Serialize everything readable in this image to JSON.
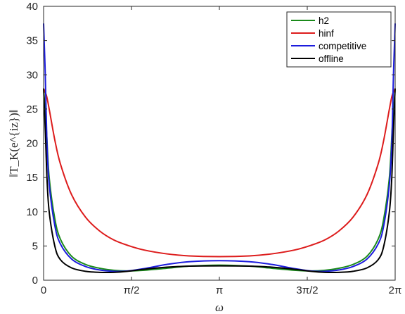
{
  "chart_data": {
    "type": "line",
    "xlabel": "ω",
    "ylabel": "‖T_K(e^{iz})‖",
    "xlim": [
      0,
      6.283185
    ],
    "ylim": [
      0,
      40
    ],
    "xticks": [
      {
        "value": 0,
        "label": "0"
      },
      {
        "value": 1.570796,
        "label": "π/2"
      },
      {
        "value": 3.141593,
        "label": "π"
      },
      {
        "value": 4.712389,
        "label": "3π/2"
      },
      {
        "value": 6.283185,
        "label": "2π"
      }
    ],
    "yticks": [
      0,
      5,
      10,
      15,
      20,
      25,
      30,
      35,
      40
    ],
    "grid": false,
    "legend_position": "top-right",
    "series": [
      {
        "name": "h2",
        "color": "#1a8a1a",
        "x": [
          0.0,
          0.05,
          0.1,
          0.2,
          0.3,
          0.5,
          0.75,
          1.0,
          1.25,
          1.5,
          1.8,
          2.2,
          2.6,
          3.1416,
          3.68,
          4.08,
          4.48,
          4.78,
          5.03,
          5.28,
          5.53,
          5.78,
          5.98,
          6.08,
          6.18,
          6.23,
          6.2832
        ],
        "y": [
          28.0,
          22.0,
          15.0,
          9.0,
          6.0,
          3.5,
          2.3,
          1.75,
          1.45,
          1.35,
          1.45,
          1.75,
          2.05,
          2.2,
          2.05,
          1.75,
          1.45,
          1.35,
          1.45,
          1.75,
          2.3,
          3.5,
          6.0,
          9.0,
          15.0,
          22.0,
          28.0
        ]
      },
      {
        "name": "hinf",
        "color": "#dd1c1c",
        "x": [
          0.0,
          0.05,
          0.1,
          0.2,
          0.3,
          0.5,
          0.75,
          1.0,
          1.25,
          1.5,
          1.8,
          2.2,
          2.6,
          3.1416,
          3.68,
          4.08,
          4.48,
          4.78,
          5.03,
          5.28,
          5.53,
          5.78,
          5.98,
          6.08,
          6.18,
          6.23,
          6.2832
        ],
        "y": [
          28.0,
          27.0,
          25.0,
          20.5,
          17.0,
          12.5,
          9.2,
          7.2,
          5.9,
          5.1,
          4.4,
          3.85,
          3.55,
          3.45,
          3.55,
          3.85,
          4.4,
          5.1,
          5.9,
          7.2,
          9.2,
          12.5,
          17.0,
          20.5,
          25.0,
          27.0,
          28.0
        ]
      },
      {
        "name": "competitive",
        "color": "#1c1cdd",
        "x": [
          0.0,
          0.03,
          0.06,
          0.1,
          0.2,
          0.3,
          0.5,
          0.75,
          1.0,
          1.25,
          1.5,
          1.8,
          2.2,
          2.6,
          3.1416,
          3.68,
          4.08,
          4.48,
          4.78,
          5.03,
          5.28,
          5.53,
          5.78,
          5.98,
          6.08,
          6.18,
          6.223,
          6.253,
          6.2832
        ],
        "y": [
          37.5,
          30.0,
          20.0,
          14.0,
          8.0,
          5.3,
          3.1,
          2.0,
          1.5,
          1.3,
          1.35,
          1.7,
          2.3,
          2.7,
          2.85,
          2.7,
          2.3,
          1.7,
          1.35,
          1.3,
          1.5,
          2.0,
          3.1,
          5.3,
          8.0,
          14.0,
          20.0,
          30.0,
          37.5
        ]
      },
      {
        "name": "offline",
        "color": "#000000",
        "x": [
          0.0,
          0.03,
          0.06,
          0.1,
          0.2,
          0.3,
          0.5,
          0.75,
          1.0,
          1.25,
          1.5,
          1.8,
          2.2,
          2.6,
          3.1416,
          3.68,
          4.08,
          4.48,
          4.78,
          5.03,
          5.28,
          5.53,
          5.78,
          5.98,
          6.08,
          6.18,
          6.223,
          6.253,
          6.2832
        ],
        "y": [
          28.0,
          22.0,
          15.0,
          10.0,
          5.0,
          3.0,
          1.8,
          1.3,
          1.15,
          1.15,
          1.3,
          1.6,
          1.9,
          2.05,
          2.1,
          2.05,
          1.9,
          1.6,
          1.3,
          1.15,
          1.15,
          1.3,
          1.8,
          3.0,
          5.0,
          10.0,
          15.0,
          22.0,
          28.0
        ]
      }
    ]
  }
}
